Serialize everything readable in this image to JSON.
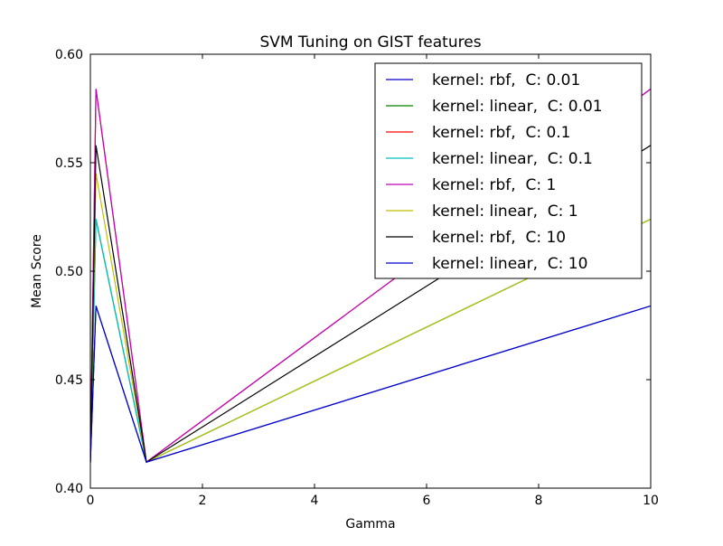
{
  "chart_data": {
    "type": "line",
    "title": "SVM Tuning on GIST features",
    "xlabel": "Gamma",
    "ylabel": "Mean Score",
    "xlim": [
      0,
      10
    ],
    "ylim": [
      0.4,
      0.6
    ],
    "x_ticks": [
      "0",
      "2",
      "4",
      "6",
      "8",
      "10"
    ],
    "y_ticks": [
      "0.40",
      "0.45",
      "0.50",
      "0.55",
      "0.60"
    ],
    "grid": false,
    "legend_position": "top-right",
    "x": [
      0.0,
      0.1,
      1.0,
      10.0
    ],
    "series": [
      {
        "name": "kernel: rbf,  C: 0.01",
        "color": "#0000cc",
        "values": [
          0.412,
          0.484,
          0.412,
          0.484
        ]
      },
      {
        "name": "kernel: linear,  C: 0.01",
        "color": "#008000",
        "values": [
          0.412,
          0.524,
          0.412,
          0.524
        ]
      },
      {
        "name": "kernel: rbf,  C: 0.1",
        "color": "#ff0000",
        "values": [
          0.412,
          0.584,
          0.412,
          0.584
        ]
      },
      {
        "name": "kernel: linear,  C: 0.1",
        "color": "#00bfbf",
        "values": [
          0.412,
          0.524,
          0.412,
          0.524
        ]
      },
      {
        "name": "kernel: rbf,  C: 1",
        "color": "#bf00bf",
        "values": [
          0.412,
          0.584,
          0.412,
          0.584
        ]
      },
      {
        "name": "kernel: linear,  C: 1",
        "color": "#bfbf00",
        "values": [
          0.412,
          0.545,
          0.412,
          0.524
        ]
      },
      {
        "name": "kernel: rbf,  C: 10",
        "color": "#000000",
        "values": [
          0.412,
          0.558,
          0.412,
          0.558
        ]
      },
      {
        "name": "kernel: linear,  C: 10",
        "color": "#0000cc",
        "values": [
          0.412,
          0.484,
          0.412,
          0.484
        ]
      }
    ]
  }
}
